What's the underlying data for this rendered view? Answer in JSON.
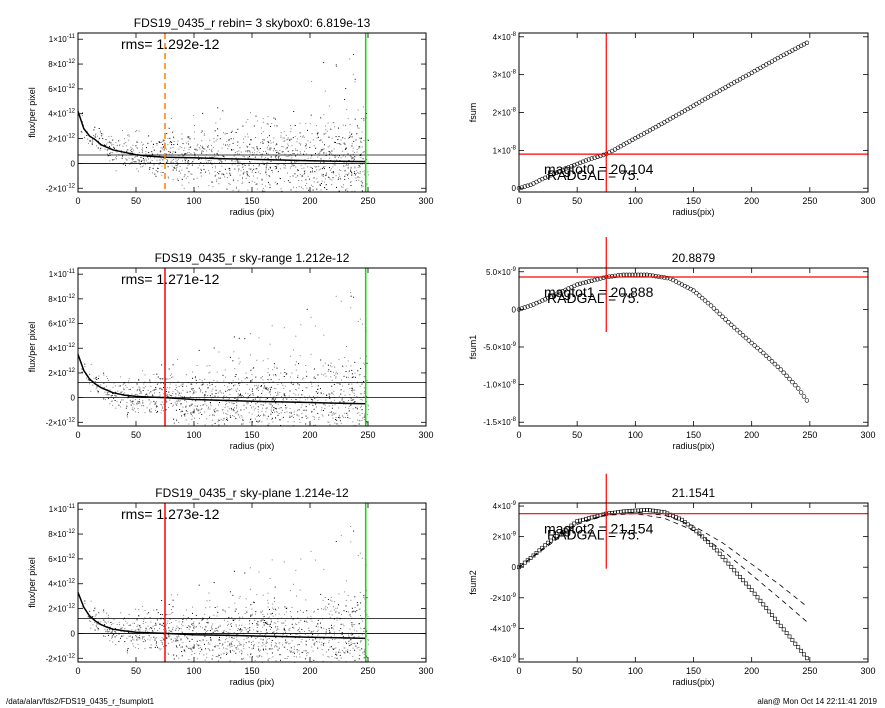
{
  "footer": {
    "path": "/data/alan/fds2/FDS19_0435_r_fsumplot1",
    "user_time": "alan@  Mon Oct 14 22:11:41 2019"
  },
  "colors": {
    "scatter": "#808080",
    "scatter_dark": "#000000",
    "profile": "#000000",
    "marker_radius": "#ff0000",
    "marker_radius_dashed": "#ff8000",
    "marker_sky": "#00dd00",
    "level_line": "#ff0000"
  },
  "chart_data": [
    {
      "id": "p1",
      "type": "scatter",
      "title": "FDS19_0435_r rebin= 3    skybox0:  6.819e-13",
      "annotation": "rms= 1.292e-12",
      "xlabel": "radius (pix)",
      "ylabel": "flux/per pixel",
      "xlim": [
        0,
        300
      ],
      "ylim": [
        -2.3e-12,
        1.05e-11
      ],
      "xticks": [
        "0",
        "50",
        "100",
        "150",
        "200",
        "250",
        "300"
      ],
      "yticks": [
        {
          "v": -2e-12,
          "m": "-2",
          "e": "-12"
        },
        {
          "v": 0,
          "m": "0",
          "e": ""
        },
        {
          "v": 2e-12,
          "m": "2",
          "e": "-12"
        },
        {
          "v": 4e-12,
          "m": "4",
          "e": "-12"
        },
        {
          "v": 6e-12,
          "m": "6",
          "e": "-12"
        },
        {
          "v": 8e-12,
          "m": "8",
          "e": "-12"
        },
        {
          "v": 1e-11,
          "m": "1",
          "e": "-11"
        }
      ],
      "hlines": [
        0,
        6.8e-13
      ],
      "vlines": [
        {
          "x": 75,
          "color": "marker_radius_dashed",
          "dash": true
        },
        {
          "x": 248,
          "color": "marker_sky",
          "dash": false
        }
      ],
      "profile_x": [
        0,
        5,
        10,
        15,
        20,
        25,
        30,
        40,
        50,
        60,
        75,
        100,
        125,
        150,
        175,
        200,
        225,
        248
      ],
      "profile_y": [
        4.2e-12,
        2.8e-12,
        2.2e-12,
        1.9e-12,
        1.5e-12,
        1.3e-12,
        1.1e-12,
        9e-13,
        7e-13,
        6e-13,
        5e-13,
        4.5e-13,
        3.8e-13,
        3.3e-13,
        2.8e-13,
        2.2e-13,
        1.8e-13,
        1.5e-13
      ]
    },
    {
      "id": "p2",
      "type": "scatter",
      "title": "FDS19_0435_r sky-range  1.212e-12",
      "annotation": "rms= 1.271e-12",
      "xlabel": "radius (pix)",
      "ylabel": "flux/per pixel",
      "xlim": [
        0,
        300
      ],
      "ylim": [
        -2.3e-12,
        1.05e-11
      ],
      "xticks": [
        "0",
        "50",
        "100",
        "150",
        "200",
        "250",
        "300"
      ],
      "yticks": [
        {
          "v": -2e-12,
          "m": "-2",
          "e": "-12"
        },
        {
          "v": 0,
          "m": "0",
          "e": ""
        },
        {
          "v": 2e-12,
          "m": "2",
          "e": "-12"
        },
        {
          "v": 4e-12,
          "m": "4",
          "e": "-12"
        },
        {
          "v": 6e-12,
          "m": "6",
          "e": "-12"
        },
        {
          "v": 8e-12,
          "m": "8",
          "e": "-12"
        },
        {
          "v": 1e-11,
          "m": "1",
          "e": "-11"
        }
      ],
      "hlines": [
        0,
        1.212e-12
      ],
      "vlines": [
        {
          "x": 75,
          "color": "marker_radius",
          "dash": false
        },
        {
          "x": 248,
          "color": "marker_sky",
          "dash": false
        }
      ],
      "profile_x": [
        0,
        5,
        10,
        15,
        20,
        25,
        30,
        40,
        50,
        60,
        75,
        100,
        125,
        150,
        175,
        200,
        225,
        248
      ],
      "profile_y": [
        3.5e-12,
        2.2e-12,
        1.5e-12,
        1.1e-12,
        8e-13,
        6e-13,
        4e-13,
        2e-13,
        1e-13,
        5e-14,
        0,
        -1.5e-13,
        -2.3e-13,
        -3e-13,
        -3.5e-13,
        -4e-13,
        -4.5e-13,
        -5e-13
      ]
    },
    {
      "id": "p3",
      "type": "scatter",
      "title": "FDS19_0435_r sky-plane  1.214e-12",
      "annotation": "rms= 1.273e-12",
      "xlabel": "radius (pix)",
      "ylabel": "flux/per pixel",
      "xlim": [
        0,
        300
      ],
      "ylim": [
        -2.3e-12,
        1.05e-11
      ],
      "xticks": [
        "0",
        "50",
        "100",
        "150",
        "200",
        "250",
        "300"
      ],
      "yticks": [
        {
          "v": -2e-12,
          "m": "-2",
          "e": "-12"
        },
        {
          "v": 0,
          "m": "0",
          "e": ""
        },
        {
          "v": 2e-12,
          "m": "2",
          "e": "-12"
        },
        {
          "v": 4e-12,
          "m": "4",
          "e": "-12"
        },
        {
          "v": 6e-12,
          "m": "6",
          "e": "-12"
        },
        {
          "v": 8e-12,
          "m": "8",
          "e": "-12"
        },
        {
          "v": 1e-11,
          "m": "1",
          "e": "-11"
        }
      ],
      "hlines": [
        0,
        1.214e-12
      ],
      "vlines": [
        {
          "x": 75,
          "color": "marker_radius",
          "dash": false
        },
        {
          "x": 248,
          "color": "marker_sky",
          "dash": false
        }
      ],
      "profile_x": [
        0,
        5,
        10,
        15,
        20,
        25,
        30,
        40,
        50,
        60,
        75,
        100,
        125,
        150,
        175,
        200,
        225,
        248
      ],
      "profile_y": [
        3.3e-12,
        2.1e-12,
        1.4e-12,
        1e-12,
        7e-13,
        5e-13,
        3.5e-13,
        2e-13,
        1e-13,
        5e-14,
        0,
        -1e-13,
        -1.5e-13,
        -2e-13,
        -2.5e-13,
        -3e-13,
        -3.5e-13,
        -4e-13
      ]
    },
    {
      "id": "p4",
      "type": "scatter",
      "title": "",
      "xlabel": "radius(pix)",
      "ylabel": "fsum",
      "xlim": [
        0,
        300
      ],
      "ylim": [
        -1e-09,
        4.1e-08
      ],
      "xticks": [
        "0",
        "50",
        "100",
        "150",
        "200",
        "250",
        "300"
      ],
      "yticks": [
        {
          "v": 0,
          "m": "0",
          "e": ""
        },
        {
          "v": 1e-08,
          "m": "1",
          "e": "-8"
        },
        {
          "v": 2e-08,
          "m": "2",
          "e": "-8"
        },
        {
          "v": 3e-08,
          "m": "3",
          "e": "-8"
        },
        {
          "v": 4e-08,
          "m": "4",
          "e": "-8"
        }
      ],
      "hline_level": 9e-09,
      "vline_x": 75,
      "labels": [
        "magtot0 =  20.104",
        "RADGAL =     75."
      ],
      "marker": "circle",
      "x": [
        0,
        10,
        20,
        30,
        40,
        50,
        60,
        75,
        100,
        125,
        150,
        175,
        200,
        225,
        248
      ],
      "y": [
        0,
        9e-10,
        2.4e-09,
        3.8e-09,
        5.2e-09,
        6.4e-09,
        7.6e-09,
        9e-09,
        1.32e-08,
        1.74e-08,
        2.18e-08,
        2.62e-08,
        3.05e-08,
        3.48e-08,
        3.85e-08
      ]
    },
    {
      "id": "p5",
      "type": "scatter",
      "title": "20.8879",
      "xlabel": "radius(pix)",
      "ylabel": "fsum1",
      "xlim": [
        0,
        300
      ],
      "ylim": [
        -1.55e-08,
        5.5e-09
      ],
      "xticks": [
        "0",
        "50",
        "100",
        "150",
        "200",
        "250",
        "300"
      ],
      "yticks": [
        {
          "v": -1.5e-08,
          "m": "-1.5",
          "e": "-8"
        },
        {
          "v": -1e-08,
          "m": "-1.0",
          "e": "-8"
        },
        {
          "v": -5e-09,
          "m": "-5.0",
          "e": "-9"
        },
        {
          "v": 0,
          "m": "0",
          "e": ""
        },
        {
          "v": 5e-09,
          "m": "5.0",
          "e": "-9"
        }
      ],
      "hline_level": 4.3e-09,
      "vline_x": 75,
      "labels": [
        "magtot1 =  20.888",
        "RADGAL =     75."
      ],
      "marker": "circle",
      "x": [
        0,
        10,
        25,
        50,
        75,
        90,
        110,
        130,
        150,
        165,
        180,
        195,
        210,
        225,
        240,
        248
      ],
      "y": [
        0,
        5e-10,
        1.5e-09,
        3.3e-09,
        4.3e-09,
        4.6e-09,
        4.6e-09,
        4.1e-09,
        2.5e-09,
        5e-10,
        -1.7e-09,
        -3.8e-09,
        -5.8e-09,
        -8e-09,
        -1.05e-08,
        -1.22e-08
      ]
    },
    {
      "id": "p6",
      "type": "scatter",
      "title": "21.1541",
      "xlabel": "radius(pix)",
      "ylabel": "fsum2",
      "xlim": [
        0,
        300
      ],
      "ylim": [
        -6.2e-09,
        4.2e-09
      ],
      "xticks": [
        "0",
        "50",
        "100",
        "150",
        "200",
        "250",
        "300"
      ],
      "yticks": [
        {
          "v": -6e-09,
          "m": "-6",
          "e": "-9"
        },
        {
          "v": -4e-09,
          "m": "-4",
          "e": "-9"
        },
        {
          "v": -2e-09,
          "m": "-2",
          "e": "-9"
        },
        {
          "v": 0,
          "m": "0",
          "e": ""
        },
        {
          "v": 2e-09,
          "m": "2",
          "e": "-9"
        },
        {
          "v": 4e-09,
          "m": "4",
          "e": "-9"
        }
      ],
      "hline_level": 3.5e-09,
      "vline_x": 75,
      "labels": [
        "magtot2 =  21.154",
        "RADGAL =     75."
      ],
      "marker": "square",
      "x": [
        0,
        10,
        25,
        50,
        75,
        90,
        110,
        125,
        140,
        155,
        170,
        185,
        200,
        215,
        230,
        245,
        248
      ],
      "y": [
        0,
        6e-10,
        1.6e-09,
        3e-09,
        3.5e-09,
        3.65e-09,
        3.75e-09,
        3.6e-09,
        3.1e-09,
        2.2e-09,
        1.1e-09,
        -2e-10,
        -1.5e-09,
        -2.9e-09,
        -4.3e-09,
        -5.7e-09,
        -6e-09
      ],
      "dashed_series": [
        {
          "x": [
            0,
            25,
            50,
            75,
            100,
            125,
            150,
            175,
            200,
            225,
            248
          ],
          "y": [
            0,
            1.5e-09,
            2.9e-09,
            3.45e-09,
            3.6e-09,
            3.4e-09,
            2.7e-09,
            1.6e-09,
            2e-10,
            -1.2e-09,
            -2.6e-09
          ]
        },
        {
          "x": [
            0,
            25,
            50,
            75,
            100,
            125,
            150,
            175,
            200,
            225,
            248
          ],
          "y": [
            0,
            1.4e-09,
            2.8e-09,
            3.4e-09,
            3.5e-09,
            3.2e-09,
            2.4e-09,
            1.1e-09,
            -5e-10,
            -2.1e-09,
            -3.6e-09
          ]
        }
      ]
    }
  ]
}
